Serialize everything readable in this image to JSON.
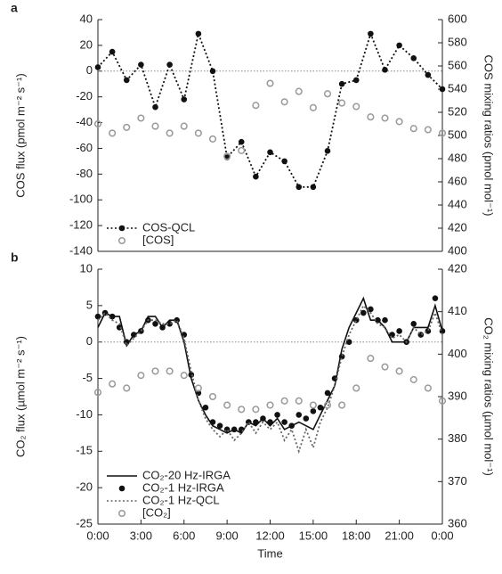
{
  "chart_data": [
    {
      "type": "line",
      "panel_label": "a",
      "y_label": "COS flux (pmol m⁻² s⁻¹)",
      "y2_label": "COS mixing ratios (pmol mol⁻¹)",
      "x": [
        0,
        1,
        2,
        3,
        4,
        5,
        6,
        7,
        8,
        9,
        10,
        11,
        12,
        13,
        14,
        15,
        16,
        17,
        18,
        19,
        20,
        21,
        22,
        23,
        24
      ],
      "xlim": [
        0,
        24
      ],
      "ylim": [
        -140,
        40
      ],
      "yticks": [
        40,
        20,
        0,
        -20,
        -40,
        -60,
        -80,
        -100,
        -120,
        -140
      ],
      "y2lim": [
        400,
        600
      ],
      "y2ticks": [
        600,
        580,
        560,
        540,
        520,
        500,
        480,
        460,
        440,
        420,
        400
      ],
      "zero_line": true,
      "legend": "lower left",
      "series": [
        {
          "name": "COS-QCL",
          "color": "#111111",
          "line": "dotted",
          "marker": "dot",
          "values": [
            3,
            15,
            -7,
            5,
            -28,
            5,
            -22,
            29,
            0,
            -67,
            -55,
            -82,
            -63,
            -70,
            -90,
            -90,
            -62,
            -10,
            -7,
            29,
            1,
            20,
            10,
            -3,
            -14
          ]
        },
        {
          "name": "[COS]",
          "color": "#999999",
          "line": "none",
          "marker": "circle",
          "axis": "y2",
          "values": [
            510,
            502,
            507,
            515,
            508,
            502,
            508,
            502,
            497,
            482,
            487,
            526,
            545,
            529,
            538,
            524,
            536,
            528,
            525,
            516,
            515,
            512,
            506,
            505,
            502
          ]
        }
      ]
    },
    {
      "type": "line",
      "panel_label": "b",
      "y_label": "CO₂ flux (µmol m⁻² s⁻¹)",
      "y2_label": "CO₂ mixing ratios (µmol mol⁻¹)",
      "x_label": "Time",
      "x": [
        0,
        0.5,
        1,
        1.5,
        2,
        2.5,
        3,
        3.5,
        4,
        4.5,
        5,
        5.5,
        6,
        6.5,
        7,
        7.5,
        8,
        8.5,
        9,
        9.5,
        10,
        10.5,
        11,
        11.5,
        12,
        12.5,
        13,
        13.5,
        14,
        14.5,
        15,
        15.5,
        16,
        16.5,
        17,
        17.5,
        18,
        18.5,
        19,
        19.5,
        20,
        20.5,
        21,
        21.5,
        22,
        22.5,
        23,
        23.5,
        24
      ],
      "xlim": [
        0,
        24
      ],
      "xticks": [
        {
          "value": 0,
          "label": "0:00"
        },
        {
          "value": 3,
          "label": "3:00"
        },
        {
          "value": 6,
          "label": "6:00"
        },
        {
          "value": 9,
          "label": "9:00"
        },
        {
          "value": 12,
          "label": "12:00"
        },
        {
          "value": 15,
          "label": "15:00"
        },
        {
          "value": 18,
          "label": "18:00"
        },
        {
          "value": 21,
          "label": "21:00"
        },
        {
          "value": 24,
          "label": "0:00"
        }
      ],
      "ylim": [
        -25,
        10
      ],
      "yticks": [
        10,
        5,
        0,
        -5,
        -10,
        -15,
        -20,
        -25
      ],
      "y2lim": [
        360,
        420
      ],
      "y2ticks": [
        420,
        410,
        400,
        390,
        380,
        370,
        360
      ],
      "zero_line": true,
      "legend": "lower left",
      "series": [
        {
          "name": "CO₂-20 Hz-IRGA",
          "color": "#111111",
          "line": "solid",
          "marker": "none",
          "values": [
            2,
            4,
            3.5,
            3.5,
            -0.5,
            1,
            1.5,
            3.5,
            3.5,
            2,
            3,
            3,
            0,
            -5,
            -8,
            -10,
            -11.5,
            -12,
            -12.5,
            -12,
            -12.5,
            -11,
            -11.5,
            -10.5,
            -11.5,
            -10.5,
            -12,
            -11.5,
            -11,
            -11.5,
            -12,
            -10,
            -8,
            -6,
            -1,
            2,
            4,
            6,
            3,
            3,
            2,
            0,
            0,
            0,
            2,
            2,
            2,
            5,
            1.5
          ]
        },
        {
          "name": "CO₂-1 Hz-IRGA",
          "color": "#111111",
          "line": "none",
          "marker": "dot",
          "values": [
            3.5,
            4,
            3.5,
            2,
            0,
            1,
            1.5,
            3,
            2.5,
            2,
            2.5,
            3,
            1,
            -4.5,
            -7,
            -9,
            -11,
            -11.5,
            -12,
            -12,
            -12,
            -11,
            -11,
            -10.5,
            -11,
            -10,
            -11,
            -11.5,
            -10,
            -10.5,
            -9.5,
            -9,
            -7,
            -5,
            -2,
            0,
            3,
            4,
            4.5,
            3,
            3,
            1,
            1.5,
            0,
            2.5,
            1,
            1.5,
            6,
            1.5
          ]
        },
        {
          "name": "CO₂-1 Hz-QCL",
          "color": "#666666",
          "line": "dotted",
          "marker": "none",
          "values": [
            3,
            4,
            3,
            2.5,
            -0.5,
            0.5,
            1.5,
            3,
            3,
            2.5,
            2.5,
            3,
            0.5,
            -4,
            -8,
            -10.5,
            -12,
            -13,
            -12,
            -13.5,
            -12.5,
            -11,
            -12.5,
            -11,
            -12,
            -11,
            -13.5,
            -12,
            -15,
            -12,
            -14.5,
            -11,
            -9,
            -6,
            -2,
            1,
            3,
            5,
            4,
            2.5,
            2,
            0.5,
            1,
            0,
            2,
            1,
            1.5,
            4,
            1
          ]
        },
        {
          "name": "[CO₂]",
          "color": "#999999",
          "line": "none",
          "marker": "circle",
          "axis": "y2",
          "values": [
            391,
            null,
            393,
            null,
            392,
            null,
            395,
            null,
            396,
            null,
            396,
            null,
            395,
            null,
            392,
            null,
            390,
            null,
            388,
            null,
            387,
            null,
            387,
            null,
            388,
            null,
            389,
            null,
            389,
            null,
            388,
            null,
            388,
            null,
            388,
            null,
            392,
            null,
            399,
            null,
            397,
            null,
            396,
            null,
            394,
            null,
            392,
            null,
            389
          ]
        }
      ]
    }
  ]
}
